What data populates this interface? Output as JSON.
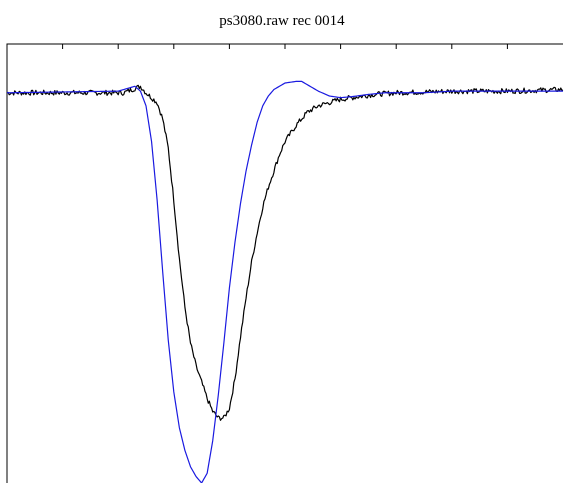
{
  "chart_data": {
    "type": "line",
    "title": "ps3080.raw    rec 0014",
    "xlabel": "",
    "ylabel": "",
    "xlim": [
      0,
      100
    ],
    "ylim": [
      -1.2,
      0.15
    ],
    "grid": false,
    "legend": "none",
    "x_tick_count": 10,
    "series": [
      {
        "color": "#000000",
        "noise": true,
        "x": [
          0,
          21,
          24,
          25,
          27,
          28,
          29,
          30,
          31,
          32,
          33,
          34,
          35,
          36,
          37,
          38,
          39,
          40,
          41,
          42,
          43,
          44,
          45,
          46,
          47,
          48,
          49,
          50,
          52,
          54,
          56,
          58,
          60,
          62,
          64,
          66,
          70,
          80,
          90,
          100
        ],
        "y": [
          0,
          0.0,
          0.02,
          0.0,
          -0.03,
          -0.08,
          -0.17,
          -0.33,
          -0.51,
          -0.66,
          -0.77,
          -0.84,
          -0.89,
          -0.94,
          -0.98,
          -1.0,
          -1.0,
          -0.97,
          -0.88,
          -0.75,
          -0.63,
          -0.52,
          -0.43,
          -0.35,
          -0.29,
          -0.24,
          -0.19,
          -0.15,
          -0.1,
          -0.06,
          -0.04,
          -0.03,
          -0.02,
          -0.015,
          -0.01,
          -0.005,
          0.0,
          0.005,
          0.005,
          0.01
        ]
      },
      {
        "color": "#1a1ae0",
        "noise": false,
        "x": [
          0,
          20,
          22,
          23,
          24,
          25,
          26,
          27,
          28,
          29,
          30,
          31,
          32,
          33,
          34,
          35,
          36,
          37,
          38,
          39,
          40,
          41,
          42,
          43,
          44,
          45,
          46,
          47,
          48,
          50,
          52,
          53,
          54,
          55,
          56,
          58,
          60,
          62,
          65,
          68,
          70,
          75,
          80,
          90,
          100
        ],
        "y": [
          0,
          0.005,
          0.015,
          0.02,
          0.005,
          -0.04,
          -0.15,
          -0.33,
          -0.55,
          -0.76,
          -0.92,
          -1.03,
          -1.1,
          -1.15,
          -1.18,
          -1.2,
          -1.17,
          -1.07,
          -0.93,
          -0.77,
          -0.6,
          -0.46,
          -0.34,
          -0.24,
          -0.16,
          -0.09,
          -0.04,
          -0.01,
          0.01,
          0.03,
          0.035,
          0.035,
          0.025,
          0.015,
          0.005,
          -0.01,
          -0.015,
          -0.012,
          -0.005,
          0.0,
          0.0,
          0.0,
          0.005,
          0.005,
          0.005
        ]
      }
    ]
  }
}
